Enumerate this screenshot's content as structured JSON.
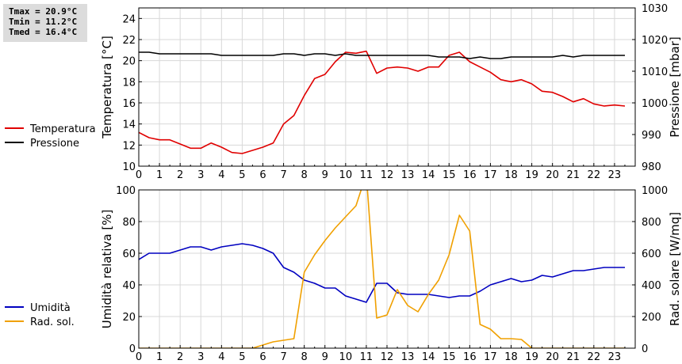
{
  "stats": {
    "tmax": "Tmax = 20.9°C",
    "tmin": "Tmin = 11.2°C",
    "tmed": "Tmed = 16.4°C"
  },
  "chart_data": [
    {
      "type": "line",
      "xlabel": "",
      "x_ticks": [
        0,
        1,
        2,
        3,
        4,
        5,
        6,
        7,
        8,
        9,
        10,
        11,
        12,
        13,
        14,
        15,
        16,
        17,
        18,
        19,
        20,
        21,
        22,
        23
      ],
      "xlim": [
        0,
        24
      ],
      "grid": true,
      "legend_position": "left",
      "y_left": {
        "label": "Temperatura [°C]",
        "lim": [
          10,
          25
        ],
        "ticks": [
          10,
          12,
          14,
          16,
          18,
          20,
          22,
          24
        ]
      },
      "y_right": {
        "label": "Pressione [mbar]",
        "lim": [
          980,
          1030
        ],
        "ticks": [
          980,
          990,
          1000,
          1010,
          1020,
          1030
        ]
      },
      "series": [
        {
          "name": "Temperatura",
          "axis": "left",
          "color": "#e00000",
          "x": [
            0,
            0.5,
            1,
            1.5,
            2,
            2.5,
            3,
            3.5,
            4,
            4.5,
            5,
            5.5,
            6,
            6.5,
            7,
            7.5,
            8,
            8.5,
            9,
            9.5,
            10,
            10.5,
            11,
            11.5,
            12,
            12.5,
            13,
            13.5,
            14,
            14.5,
            15,
            15.5,
            16,
            16.5,
            17,
            17.5,
            18,
            18.5,
            19,
            19.5,
            20,
            20.5,
            21,
            21.5,
            22,
            22.5,
            23,
            23.5
          ],
          "values": [
            13.2,
            12.7,
            12.5,
            12.5,
            12.1,
            11.7,
            11.7,
            12.2,
            11.8,
            11.3,
            11.2,
            11.5,
            11.8,
            12.2,
            14.0,
            14.8,
            16.7,
            18.3,
            18.7,
            19.9,
            20.8,
            20.7,
            20.9,
            18.8,
            19.3,
            19.4,
            19.3,
            19.0,
            19.4,
            19.4,
            20.5,
            20.8,
            19.9,
            19.4,
            18.9,
            18.2,
            18.0,
            18.2,
            17.8,
            17.1,
            17.0,
            16.6,
            16.1,
            16.4,
            15.9,
            15.7,
            15.8,
            15.7
          ]
        },
        {
          "name": "Pressione",
          "axis": "right",
          "color": "#000000",
          "x": [
            0,
            0.5,
            1,
            1.5,
            2,
            2.5,
            3,
            3.5,
            4,
            4.5,
            5,
            5.5,
            6,
            6.5,
            7,
            7.5,
            8,
            8.5,
            9,
            9.5,
            10,
            10.5,
            11,
            11.5,
            12,
            12.5,
            13,
            13.5,
            14,
            14.5,
            15,
            15.5,
            16,
            16.5,
            17,
            17.5,
            18,
            18.5,
            19,
            19.5,
            20,
            20.5,
            21,
            21.5,
            22,
            22.5,
            23,
            23.5
          ],
          "values": [
            1016,
            1016,
            1015.5,
            1015.5,
            1015.5,
            1015.5,
            1015.5,
            1015.5,
            1015,
            1015,
            1015,
            1015,
            1015,
            1015,
            1015.5,
            1015.5,
            1015,
            1015.5,
            1015.5,
            1015,
            1015.5,
            1015,
            1015,
            1015,
            1015,
            1015,
            1015,
            1015,
            1015,
            1014.5,
            1014.5,
            1014.5,
            1014,
            1014.5,
            1014,
            1014,
            1014.5,
            1014.5,
            1014.5,
            1014.5,
            1014.5,
            1015,
            1014.5,
            1015,
            1015,
            1015,
            1015,
            1015
          ]
        }
      ]
    },
    {
      "type": "line",
      "xlabel": "",
      "x_ticks": [
        0,
        1,
        2,
        3,
        4,
        5,
        6,
        7,
        8,
        9,
        10,
        11,
        12,
        13,
        14,
        15,
        16,
        17,
        18,
        19,
        20,
        21,
        22,
        23
      ],
      "xlim": [
        0,
        24
      ],
      "grid": true,
      "legend_position": "left",
      "y_left": {
        "label": "Umidità relativa [%]",
        "lim": [
          0,
          100
        ],
        "ticks": [
          0,
          20,
          40,
          60,
          80,
          100
        ]
      },
      "y_right": {
        "label": "Rad. solare [W/mq]",
        "lim": [
          0,
          1000
        ],
        "ticks": [
          0,
          200,
          400,
          600,
          800,
          1000
        ]
      },
      "series": [
        {
          "name": "Umidità",
          "axis": "left",
          "color": "#0000c0",
          "x": [
            0,
            0.5,
            1,
            1.5,
            2,
            2.5,
            3,
            3.5,
            4,
            4.5,
            5,
            5.5,
            6,
            6.5,
            7,
            7.5,
            8,
            8.5,
            9,
            9.5,
            10,
            10.5,
            11,
            11.5,
            12,
            12.5,
            13,
            13.5,
            14,
            14.5,
            15,
            15.5,
            16,
            16.5,
            17,
            17.5,
            18,
            18.5,
            19,
            19.5,
            20,
            20.5,
            21,
            21.5,
            22,
            22.5,
            23,
            23.5
          ],
          "values": [
            56,
            60,
            60,
            60,
            62,
            64,
            64,
            62,
            64,
            65,
            66,
            65,
            63,
            60,
            51,
            48,
            43,
            41,
            38,
            38,
            33,
            31,
            29,
            41,
            41,
            35,
            34,
            34,
            34,
            33,
            32,
            33,
            33,
            36,
            40,
            42,
            44,
            42,
            43,
            46,
            45,
            47,
            49,
            49,
            50,
            51,
            51,
            51
          ]
        },
        {
          "name": "Rad. sol.",
          "axis": "right",
          "color": "#f0a000",
          "x": [
            0,
            0.5,
            1,
            1.5,
            2,
            2.5,
            3,
            3.5,
            4,
            4.5,
            5,
            5.5,
            6,
            6.5,
            7,
            7.5,
            8,
            8.5,
            9,
            9.5,
            10,
            10.5,
            11,
            11.5,
            12,
            12.5,
            13,
            13.5,
            14,
            14.5,
            15,
            15.5,
            16,
            16.5,
            17,
            17.5,
            18,
            18.5,
            19,
            19.5,
            20,
            20.5,
            21,
            21.5,
            22,
            22.5,
            23,
            23.5
          ],
          "values": [
            0,
            0,
            0,
            0,
            0,
            0,
            0,
            0,
            0,
            0,
            0,
            0,
            20,
            40,
            50,
            60,
            480,
            590,
            680,
            760,
            830,
            900,
            1100,
            190,
            210,
            370,
            270,
            230,
            340,
            430,
            590,
            840,
            740,
            150,
            120,
            60,
            60,
            55,
            0,
            0,
            0,
            0,
            0,
            0,
            0,
            0,
            0,
            0
          ]
        }
      ]
    }
  ]
}
